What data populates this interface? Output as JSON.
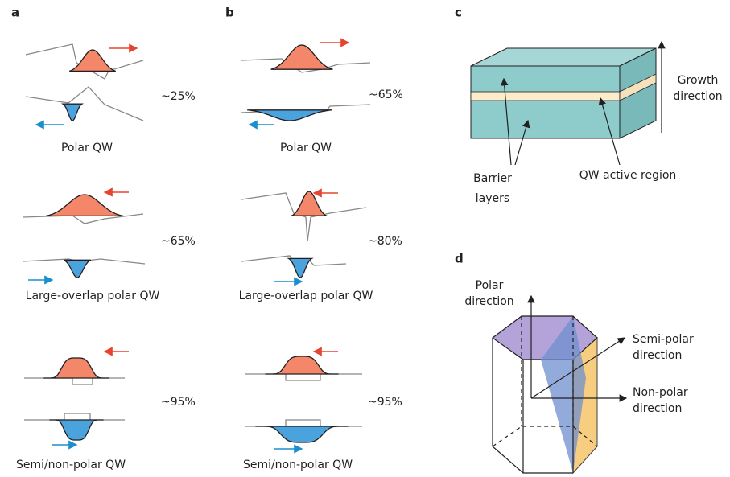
{
  "panels": {
    "a": {
      "label": "a",
      "rows": [
        {
          "percent": "~25%",
          "caption": "Polar QW"
        },
        {
          "percent": "~65%",
          "caption": "Large-overlap polar QW"
        },
        {
          "percent": "~95%",
          "caption": "Semi/non-polar QW"
        }
      ]
    },
    "b": {
      "label": "b",
      "rows": [
        {
          "percent": "~65%",
          "caption": "Polar QW"
        },
        {
          "percent": "~80%",
          "caption": "Large-overlap polar QW"
        },
        {
          "percent": "~95%",
          "caption": "Semi/non-polar QW"
        }
      ]
    },
    "c": {
      "label": "c",
      "growth_direction": [
        "Growth",
        "direction"
      ],
      "barrier_layers": [
        "Barrier",
        "layers"
      ],
      "qw_active_region": "QW active region"
    },
    "d": {
      "label": "d",
      "polar_direction": [
        "Polar",
        "direction"
      ],
      "semi_polar_direction": [
        "Semi-polar",
        "direction"
      ],
      "non_polar_direction": [
        "Non-polar",
        "direction"
      ]
    }
  }
}
